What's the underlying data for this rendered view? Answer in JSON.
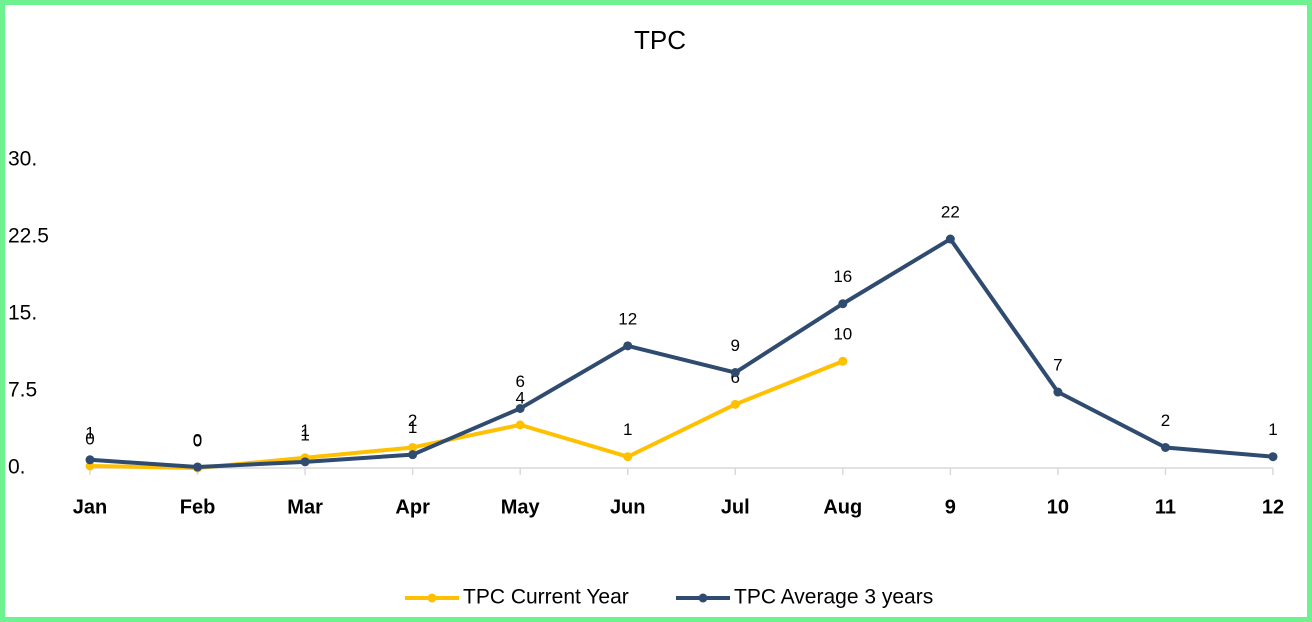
{
  "chart_data": {
    "type": "line",
    "title": "TPC",
    "categories": [
      "Jan",
      "Feb",
      "Mar",
      "Apr",
      "May",
      "Jun",
      "Jul",
      "Aug",
      "9",
      "10",
      "11",
      "12"
    ],
    "series": [
      {
        "name": "TPC Current Year",
        "color": "#ffc000",
        "values": [
          0.2,
          0,
          1,
          2,
          4.2,
          1.1,
          6.2,
          10.4,
          null,
          null,
          null,
          null
        ],
        "value_labels": [
          "0",
          "0",
          "1",
          "2",
          "4",
          "1",
          "6",
          "10",
          null,
          null,
          null,
          null
        ]
      },
      {
        "name": "TPC Average 3 years",
        "color": "#2f4b70",
        "values": [
          0.8,
          0.1,
          0.6,
          1.3,
          5.8,
          11.9,
          9.3,
          16,
          22.3,
          7.4,
          2,
          1.1
        ],
        "value_labels": [
          "1",
          "0",
          "1",
          "1",
          "6",
          "12",
          "9",
          "16",
          "22",
          "7",
          "2",
          "1"
        ]
      }
    ],
    "ylim": [
      0,
      30
    ],
    "yticks": [
      {
        "value": 0,
        "label": "0."
      },
      7.5,
      {
        "value": 15,
        "label": "15."
      },
      22.5,
      {
        "value": 30,
        "label": "30."
      }
    ],
    "grid": false,
    "legend": "bottom"
  }
}
